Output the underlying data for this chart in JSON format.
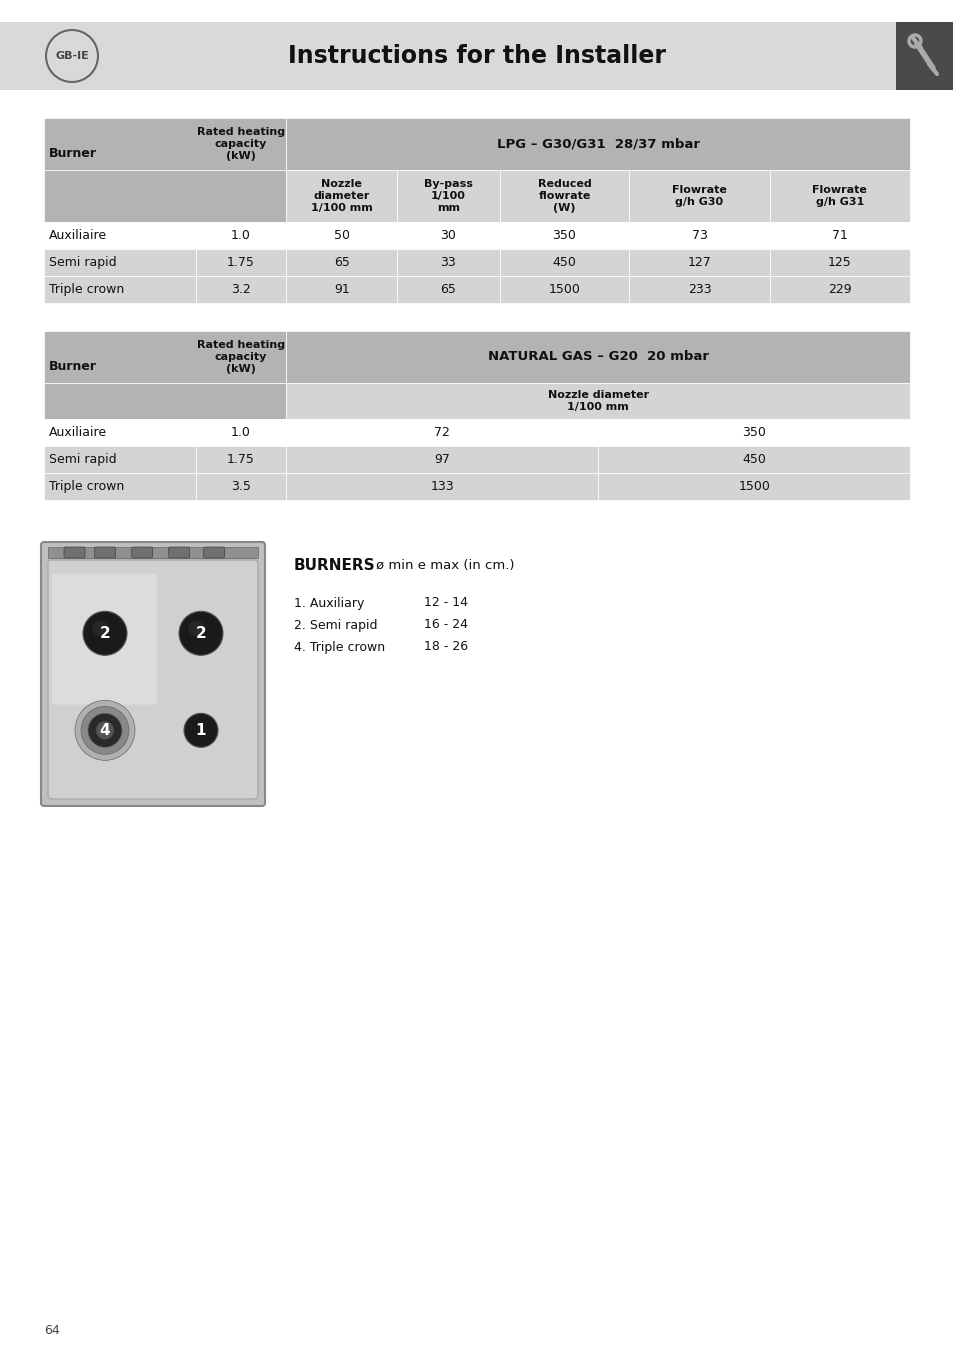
{
  "page_bg": "#ffffff",
  "header_bg": "#d9d9d9",
  "header_title": "Instructions for the Installer",
  "header_title_fontsize": 17,
  "country_label": "GB-IE",
  "table1_rows": [
    [
      "Auxiliaire",
      "1.0",
      "50",
      "30",
      "350",
      "73",
      "71"
    ],
    [
      "Semi rapid",
      "1.75",
      "65",
      "33",
      "450",
      "127",
      "125"
    ],
    [
      "Triple crown",
      "3.2",
      "91",
      "65",
      "1500",
      "233",
      "229"
    ]
  ],
  "table2_rows": [
    [
      "Auxiliaire",
      "1.0",
      "72",
      "350"
    ],
    [
      "Semi rapid",
      "1.75",
      "97",
      "450"
    ],
    [
      "Triple crown",
      "3.5",
      "133",
      "1500"
    ]
  ],
  "burners_title": "BURNERS",
  "burners_subtitle": "ø min e max (in cm.)",
  "burner_list": [
    [
      "1. Auxiliary",
      "12 - 14"
    ],
    [
      "2. Semi rapid",
      "16 - 24"
    ],
    [
      "4. Triple crown",
      "18 - 26"
    ]
  ],
  "table_header_color": "#b3b3b3",
  "table_subheader_color": "#d4d4d4",
  "table_row_white": "#ffffff",
  "table_row_gray": "#d4d4d4",
  "table_border_color": "#ffffff",
  "page_number": "64"
}
